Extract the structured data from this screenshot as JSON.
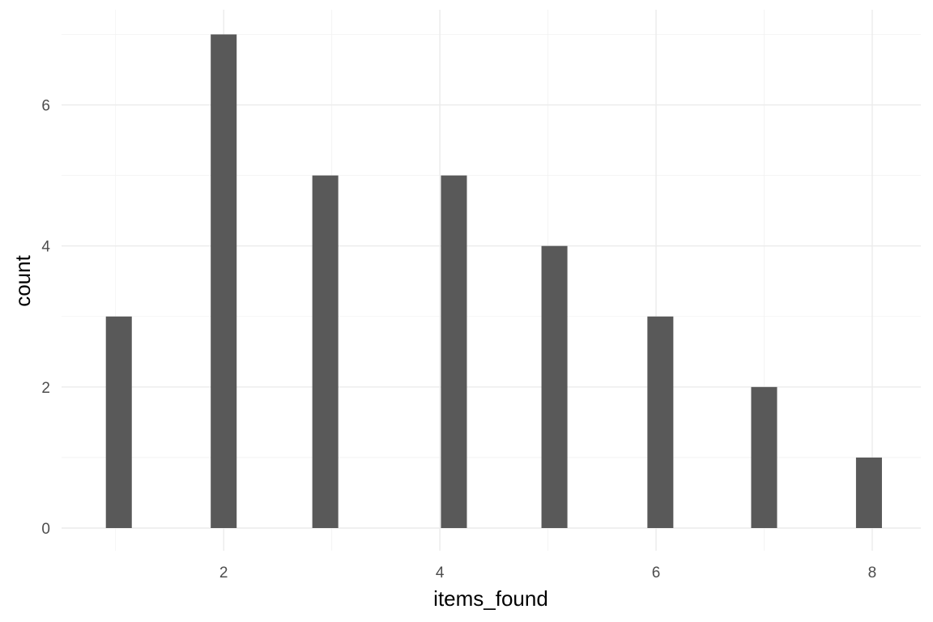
{
  "chart_data": {
    "type": "bar",
    "xlabel": "items_found",
    "ylabel": "count",
    "x": [
      1.03,
      2.0,
      2.94,
      4.13,
      5.06,
      6.04,
      7.0,
      7.97
    ],
    "values": [
      3,
      7,
      5,
      5,
      4,
      3,
      2,
      1
    ],
    "xlim": [
      0.5,
      8.45
    ],
    "ylim": [
      0,
      7.35
    ],
    "x_major_ticks": [
      2,
      4,
      6,
      8
    ],
    "x_minor_ticks": [
      1,
      3,
      5,
      7
    ],
    "y_major_ticks": [
      0,
      2,
      4,
      6
    ],
    "y_minor_ticks": [
      1,
      3,
      5,
      7
    ],
    "x_tick_labels": [
      "2",
      "4",
      "6",
      "8"
    ],
    "y_tick_labels": [
      "0",
      "2",
      "4",
      "6"
    ],
    "bar_color": "#595959",
    "grid": true
  }
}
